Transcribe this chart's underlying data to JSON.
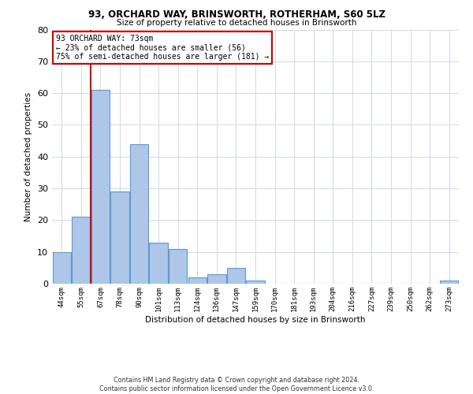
{
  "title1": "93, ORCHARD WAY, BRINSWORTH, ROTHERHAM, S60 5LZ",
  "title2": "Size of property relative to detached houses in Brinsworth",
  "xlabel": "Distribution of detached houses by size in Brinsworth",
  "ylabel": "Number of detached properties",
  "bar_labels": [
    "44sqm",
    "55sqm",
    "67sqm",
    "78sqm",
    "90sqm",
    "101sqm",
    "113sqm",
    "124sqm",
    "136sqm",
    "147sqm",
    "159sqm",
    "170sqm",
    "181sqm",
    "193sqm",
    "204sqm",
    "216sqm",
    "227sqm",
    "239sqm",
    "250sqm",
    "262sqm",
    "273sqm"
  ],
  "bar_values": [
    10,
    21,
    61,
    29,
    44,
    13,
    11,
    2,
    3,
    5,
    1,
    0,
    0,
    0,
    0,
    0,
    0,
    0,
    0,
    0,
    1
  ],
  "bar_color": "#aec6e8",
  "bar_edge_color": "#5b9bd5",
  "background_color": "#ffffff",
  "grid_color": "#d0d8e8",
  "property_line_x": 1.5,
  "property_line_color": "#cc0000",
  "annotation_line1": "93 ORCHARD WAY: 73sqm",
  "annotation_line2": "← 23% of detached houses are smaller (56)",
  "annotation_line3": "75% of semi-detached houses are larger (181) →",
  "annotation_box_color": "#ffffff",
  "annotation_box_edge_color": "#cc0000",
  "footer_text": "Contains HM Land Registry data © Crown copyright and database right 2024.\nContains public sector information licensed under the Open Government Licence v3.0.",
  "ylim": [
    0,
    80
  ],
  "yticks": [
    0,
    10,
    20,
    30,
    40,
    50,
    60,
    70,
    80
  ]
}
